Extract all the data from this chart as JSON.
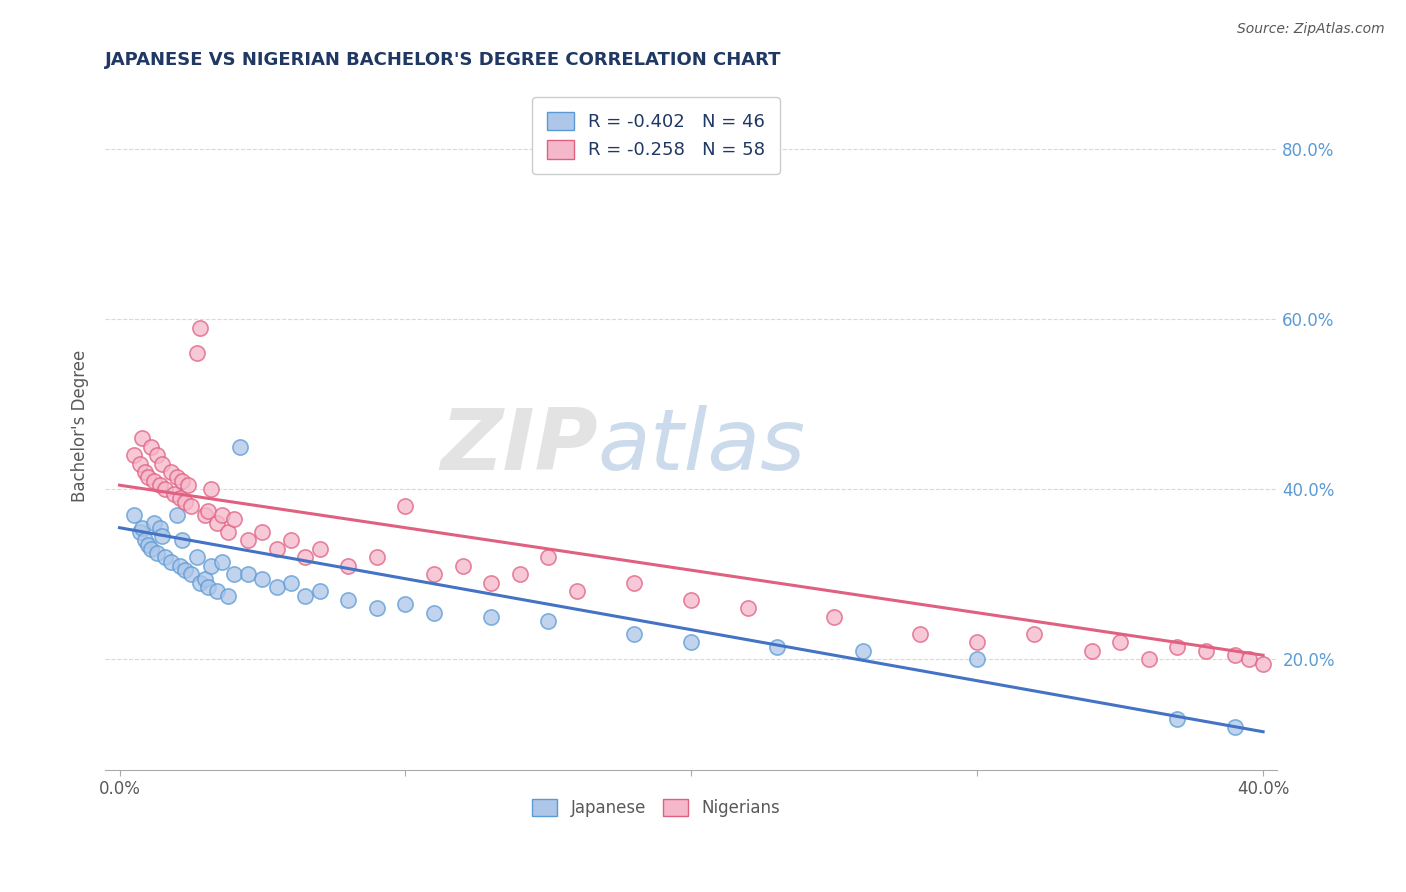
{
  "title": "JAPANESE VS NIGERIAN BACHELOR'S DEGREE CORRELATION CHART",
  "source_text": "Source: ZipAtlas.com",
  "ylabel": "Bachelor's Degree",
  "xlim": [
    -0.005,
    0.405
  ],
  "ylim": [
    0.07,
    0.88
  ],
  "xtick_vals": [
    0.0,
    0.1,
    0.2,
    0.3,
    0.4
  ],
  "xtick_labels_show": [
    "0.0%",
    "",
    "",
    "",
    "40.0%"
  ],
  "ytick_right_vals": [
    0.2,
    0.4,
    0.6,
    0.8
  ],
  "ytick_right_labels": [
    "20.0%",
    "40.0%",
    "60.0%",
    "80.0%"
  ],
  "japanese_fill_color": "#aec6e8",
  "japanese_edge_color": "#5b9bd5",
  "nigerian_fill_color": "#f5b8cb",
  "nigerian_edge_color": "#e06080",
  "japanese_line_color": "#4472c4",
  "nigerian_line_color": "#e06080",
  "title_color": "#203864",
  "label_color": "#595959",
  "right_axis_color": "#5b9bd5",
  "source_color": "#595959",
  "watermark_zip": "ZIP",
  "watermark_atlas": "atlas",
  "background_color": "#ffffff",
  "grid_color": "#d9d9d9",
  "legend_label1": "Japanese",
  "legend_label2": "Nigerians",
  "japanese_scatter_x": [
    0.005,
    0.007,
    0.008,
    0.009,
    0.01,
    0.011,
    0.012,
    0.013,
    0.014,
    0.015,
    0.016,
    0.018,
    0.02,
    0.021,
    0.022,
    0.023,
    0.025,
    0.027,
    0.028,
    0.03,
    0.031,
    0.032,
    0.034,
    0.036,
    0.038,
    0.04,
    0.042,
    0.045,
    0.05,
    0.055,
    0.06,
    0.065,
    0.07,
    0.08,
    0.09,
    0.1,
    0.11,
    0.13,
    0.15,
    0.18,
    0.2,
    0.23,
    0.26,
    0.3,
    0.37,
    0.39
  ],
  "japanese_scatter_y": [
    0.37,
    0.35,
    0.355,
    0.34,
    0.335,
    0.33,
    0.36,
    0.325,
    0.355,
    0.345,
    0.32,
    0.315,
    0.37,
    0.31,
    0.34,
    0.305,
    0.3,
    0.32,
    0.29,
    0.295,
    0.285,
    0.31,
    0.28,
    0.315,
    0.275,
    0.3,
    0.45,
    0.3,
    0.295,
    0.285,
    0.29,
    0.275,
    0.28,
    0.27,
    0.26,
    0.265,
    0.255,
    0.25,
    0.245,
    0.23,
    0.22,
    0.215,
    0.21,
    0.2,
    0.13,
    0.12
  ],
  "nigerian_scatter_x": [
    0.005,
    0.007,
    0.008,
    0.009,
    0.01,
    0.011,
    0.012,
    0.013,
    0.014,
    0.015,
    0.016,
    0.018,
    0.019,
    0.02,
    0.021,
    0.022,
    0.023,
    0.024,
    0.025,
    0.027,
    0.028,
    0.03,
    0.031,
    0.032,
    0.034,
    0.036,
    0.038,
    0.04,
    0.045,
    0.05,
    0.055,
    0.06,
    0.065,
    0.07,
    0.08,
    0.09,
    0.1,
    0.11,
    0.12,
    0.13,
    0.14,
    0.15,
    0.16,
    0.18,
    0.2,
    0.22,
    0.25,
    0.28,
    0.3,
    0.32,
    0.34,
    0.35,
    0.36,
    0.37,
    0.38,
    0.39,
    0.395,
    0.4
  ],
  "nigerian_scatter_y": [
    0.44,
    0.43,
    0.46,
    0.42,
    0.415,
    0.45,
    0.41,
    0.44,
    0.405,
    0.43,
    0.4,
    0.42,
    0.395,
    0.415,
    0.39,
    0.41,
    0.385,
    0.405,
    0.38,
    0.56,
    0.59,
    0.37,
    0.375,
    0.4,
    0.36,
    0.37,
    0.35,
    0.365,
    0.34,
    0.35,
    0.33,
    0.34,
    0.32,
    0.33,
    0.31,
    0.32,
    0.38,
    0.3,
    0.31,
    0.29,
    0.3,
    0.32,
    0.28,
    0.29,
    0.27,
    0.26,
    0.25,
    0.23,
    0.22,
    0.23,
    0.21,
    0.22,
    0.2,
    0.215,
    0.21,
    0.205,
    0.2,
    0.195
  ],
  "japanese_trend_x0": 0.0,
  "japanese_trend_y0": 0.355,
  "japanese_trend_x1": 0.4,
  "japanese_trend_y1": 0.115,
  "nigerian_trend_x0": 0.0,
  "nigerian_trend_y0": 0.405,
  "nigerian_trend_x1": 0.4,
  "nigerian_trend_y1": 0.205
}
